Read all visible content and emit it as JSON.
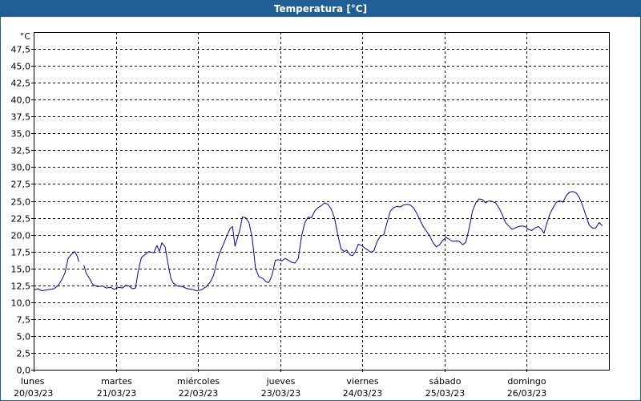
{
  "window": {
    "title": "Temperatura [°C]"
  },
  "chart_data": {
    "type": "line",
    "title": "Temperatura [°C]",
    "ylabel": "°C",
    "ylim": [
      0,
      50
    ],
    "xlim": [
      0,
      7
    ],
    "grid": true,
    "colors": {
      "line": "#0000b0",
      "grid": "#000000",
      "frame": "#000000",
      "titlebar": "#1f5f95"
    },
    "y_ticks": [
      {
        "v": 0,
        "label": "0,0"
      },
      {
        "v": 2.5,
        "label": "2,5"
      },
      {
        "v": 5,
        "label": "5,0"
      },
      {
        "v": 7.5,
        "label": "7,5"
      },
      {
        "v": 10,
        "label": "10,0"
      },
      {
        "v": 12.5,
        "label": "12,5"
      },
      {
        "v": 15,
        "label": "15,0"
      },
      {
        "v": 17.5,
        "label": "17,5"
      },
      {
        "v": 20,
        "label": "20,0"
      },
      {
        "v": 22.5,
        "label": "22,5"
      },
      {
        "v": 25,
        "label": "25,0"
      },
      {
        "v": 27.5,
        "label": "27,5"
      },
      {
        "v": 30,
        "label": "30,0"
      },
      {
        "v": 32.5,
        "label": "32,5"
      },
      {
        "v": 35,
        "label": "35,0"
      },
      {
        "v": 37.5,
        "label": "37,5"
      },
      {
        "v": 40,
        "label": "40,0"
      },
      {
        "v": 42.5,
        "label": "42,5"
      },
      {
        "v": 45,
        "label": "45,0"
      },
      {
        "v": 47.5,
        "label": "47,5"
      }
    ],
    "x_ticks": [
      {
        "v": 0,
        "day": "lunes",
        "date": "20/03/23"
      },
      {
        "v": 1,
        "day": "martes",
        "date": "21/03/23"
      },
      {
        "v": 2,
        "day": "miércoles",
        "date": "22/03/23"
      },
      {
        "v": 3,
        "day": "jueves",
        "date": "23/03/23"
      },
      {
        "v": 4,
        "day": "viernes",
        "date": "24/03/23"
      },
      {
        "v": 5,
        "day": "sábado",
        "date": "25/03/23"
      },
      {
        "v": 6,
        "day": "domingo",
        "date": "26/03/23"
      }
    ],
    "series": [
      {
        "segments": [
          [
            [
              0.0,
              11.8
            ],
            [
              0.05,
              12.0
            ],
            [
              0.1,
              11.7
            ],
            [
              0.15,
              11.8
            ],
            [
              0.2,
              11.9
            ],
            [
              0.25,
              12.0
            ],
            [
              0.3,
              12.5
            ],
            [
              0.35,
              13.5
            ],
            [
              0.38,
              14.3
            ],
            [
              0.42,
              16.5
            ],
            [
              0.46,
              17.1
            ],
            [
              0.5,
              17.5
            ],
            [
              0.53,
              16.8
            ],
            [
              0.55,
              16.0
            ]
          ],
          [
            [
              0.61,
              15.5
            ],
            [
              0.64,
              14.3
            ],
            [
              0.68,
              13.5
            ],
            [
              0.72,
              12.6
            ],
            [
              0.78,
              12.3
            ],
            [
              0.84,
              12.4
            ],
            [
              0.88,
              12.1
            ],
            [
              0.94,
              12.2
            ],
            [
              0.98,
              11.9
            ],
            [
              1.03,
              12.2
            ],
            [
              1.08,
              12.1
            ],
            [
              1.12,
              12.5
            ],
            [
              1.16,
              12.4
            ],
            [
              1.2,
              12.0
            ],
            [
              1.24,
              12.1
            ],
            [
              1.27,
              14.5
            ],
            [
              1.31,
              16.6
            ],
            [
              1.35,
              17.0
            ],
            [
              1.4,
              17.5
            ],
            [
              1.46,
              17.3
            ],
            [
              1.5,
              18.4
            ],
            [
              1.53,
              17.5
            ],
            [
              1.56,
              18.8
            ],
            [
              1.6,
              18.2
            ],
            [
              1.63,
              16.0
            ],
            [
              1.67,
              13.5
            ],
            [
              1.7,
              12.8
            ],
            [
              1.75,
              12.4
            ],
            [
              1.81,
              12.3
            ],
            [
              1.87,
              12.0
            ],
            [
              1.93,
              11.9
            ],
            [
              1.98,
              11.7
            ],
            [
              2.04,
              11.8
            ],
            [
              2.1,
              12.3
            ],
            [
              2.15,
              13.0
            ],
            [
              2.19,
              14.0
            ],
            [
              2.23,
              16.0
            ],
            [
              2.27,
              17.5
            ],
            [
              2.31,
              18.6
            ],
            [
              2.35,
              19.8
            ],
            [
              2.39,
              20.9
            ],
            [
              2.42,
              21.2
            ],
            [
              2.45,
              18.3
            ],
            [
              2.48,
              19.5
            ],
            [
              2.51,
              20.8
            ],
            [
              2.54,
              22.6
            ],
            [
              2.58,
              22.5
            ],
            [
              2.62,
              21.8
            ],
            [
              2.66,
              19.5
            ],
            [
              2.7,
              15.0
            ],
            [
              2.74,
              13.8
            ],
            [
              2.79,
              13.5
            ],
            [
              2.83,
              13.0
            ],
            [
              2.86,
              12.9
            ],
            [
              2.9,
              14.0
            ],
            [
              2.94,
              16.2
            ],
            [
              2.98,
              16.3
            ],
            [
              3.02,
              16.1
            ],
            [
              3.06,
              16.5
            ],
            [
              3.1,
              16.2
            ],
            [
              3.14,
              15.9
            ],
            [
              3.18,
              15.8
            ],
            [
              3.22,
              16.5
            ],
            [
              3.26,
              19.8
            ],
            [
              3.3,
              21.8
            ],
            [
              3.34,
              22.6
            ],
            [
              3.38,
              22.5
            ],
            [
              3.42,
              23.5
            ],
            [
              3.46,
              24.0
            ],
            [
              3.5,
              24.3
            ],
            [
              3.54,
              24.7
            ],
            [
              3.58,
              24.5
            ],
            [
              3.62,
              23.8
            ],
            [
              3.66,
              22.5
            ],
            [
              3.7,
              20.0
            ],
            [
              3.74,
              17.9
            ],
            [
              3.78,
              17.5
            ],
            [
              3.81,
              17.7
            ],
            [
              3.85,
              17.0
            ],
            [
              3.88,
              16.9
            ],
            [
              3.91,
              17.4
            ],
            [
              3.95,
              18.6
            ],
            [
              3.99,
              18.4
            ],
            [
              4.03,
              18.0
            ],
            [
              4.07,
              17.7
            ],
            [
              4.1,
              17.4
            ],
            [
              4.14,
              17.6
            ],
            [
              4.18,
              19.0
            ],
            [
              4.22,
              19.8
            ],
            [
              4.26,
              20.0
            ],
            [
              4.3,
              21.8
            ],
            [
              4.34,
              23.5
            ],
            [
              4.38,
              24.0
            ],
            [
              4.42,
              24.2
            ],
            [
              4.46,
              24.1
            ],
            [
              4.5,
              24.4
            ],
            [
              4.54,
              24.5
            ],
            [
              4.58,
              24.4
            ],
            [
              4.62,
              24.0
            ],
            [
              4.66,
              23.2
            ],
            [
              4.7,
              22.2
            ],
            [
              4.74,
              21.2
            ],
            [
              4.78,
              20.5
            ],
            [
              4.82,
              19.8
            ],
            [
              4.86,
              18.8
            ],
            [
              4.9,
              18.2
            ],
            [
              4.94,
              18.5
            ],
            [
              4.98,
              19.2
            ],
            [
              5.02,
              19.6
            ],
            [
              5.06,
              19.3
            ],
            [
              5.1,
              19.0
            ],
            [
              5.14,
              19.1
            ],
            [
              5.18,
              19.0
            ],
            [
              5.22,
              18.5
            ],
            [
              5.26,
              18.9
            ],
            [
              5.3,
              21.0
            ],
            [
              5.34,
              23.5
            ],
            [
              5.38,
              24.7
            ],
            [
              5.42,
              25.3
            ],
            [
              5.46,
              25.2
            ],
            [
              5.5,
              24.7
            ],
            [
              5.54,
              25.0
            ],
            [
              5.58,
              24.9
            ],
            [
              5.62,
              24.7
            ],
            [
              5.66,
              24.0
            ],
            [
              5.7,
              23.0
            ],
            [
              5.74,
              21.8
            ],
            [
              5.78,
              21.3
            ],
            [
              5.82,
              20.8
            ],
            [
              5.86,
              21.0
            ],
            [
              5.9,
              21.2
            ],
            [
              5.94,
              21.3
            ],
            [
              5.98,
              21.2
            ],
            [
              6.02,
              20.8
            ],
            [
              6.06,
              20.6
            ],
            [
              6.1,
              21.0
            ],
            [
              6.14,
              21.2
            ],
            [
              6.18,
              20.8
            ],
            [
              6.21,
              20.2
            ],
            [
              6.24,
              21.5
            ],
            [
              6.28,
              23.0
            ],
            [
              6.32,
              24.0
            ],
            [
              6.36,
              24.8
            ],
            [
              6.4,
              25.0
            ],
            [
              6.44,
              24.8
            ],
            [
              6.48,
              25.8
            ],
            [
              6.52,
              26.3
            ],
            [
              6.56,
              26.4
            ],
            [
              6.6,
              26.2
            ],
            [
              6.64,
              25.5
            ],
            [
              6.68,
              24.3
            ],
            [
              6.72,
              22.8
            ],
            [
              6.76,
              21.4
            ],
            [
              6.8,
              21.0
            ],
            [
              6.84,
              21.0
            ],
            [
              6.88,
              21.8
            ],
            [
              6.92,
              21.3
            ]
          ]
        ]
      }
    ]
  }
}
